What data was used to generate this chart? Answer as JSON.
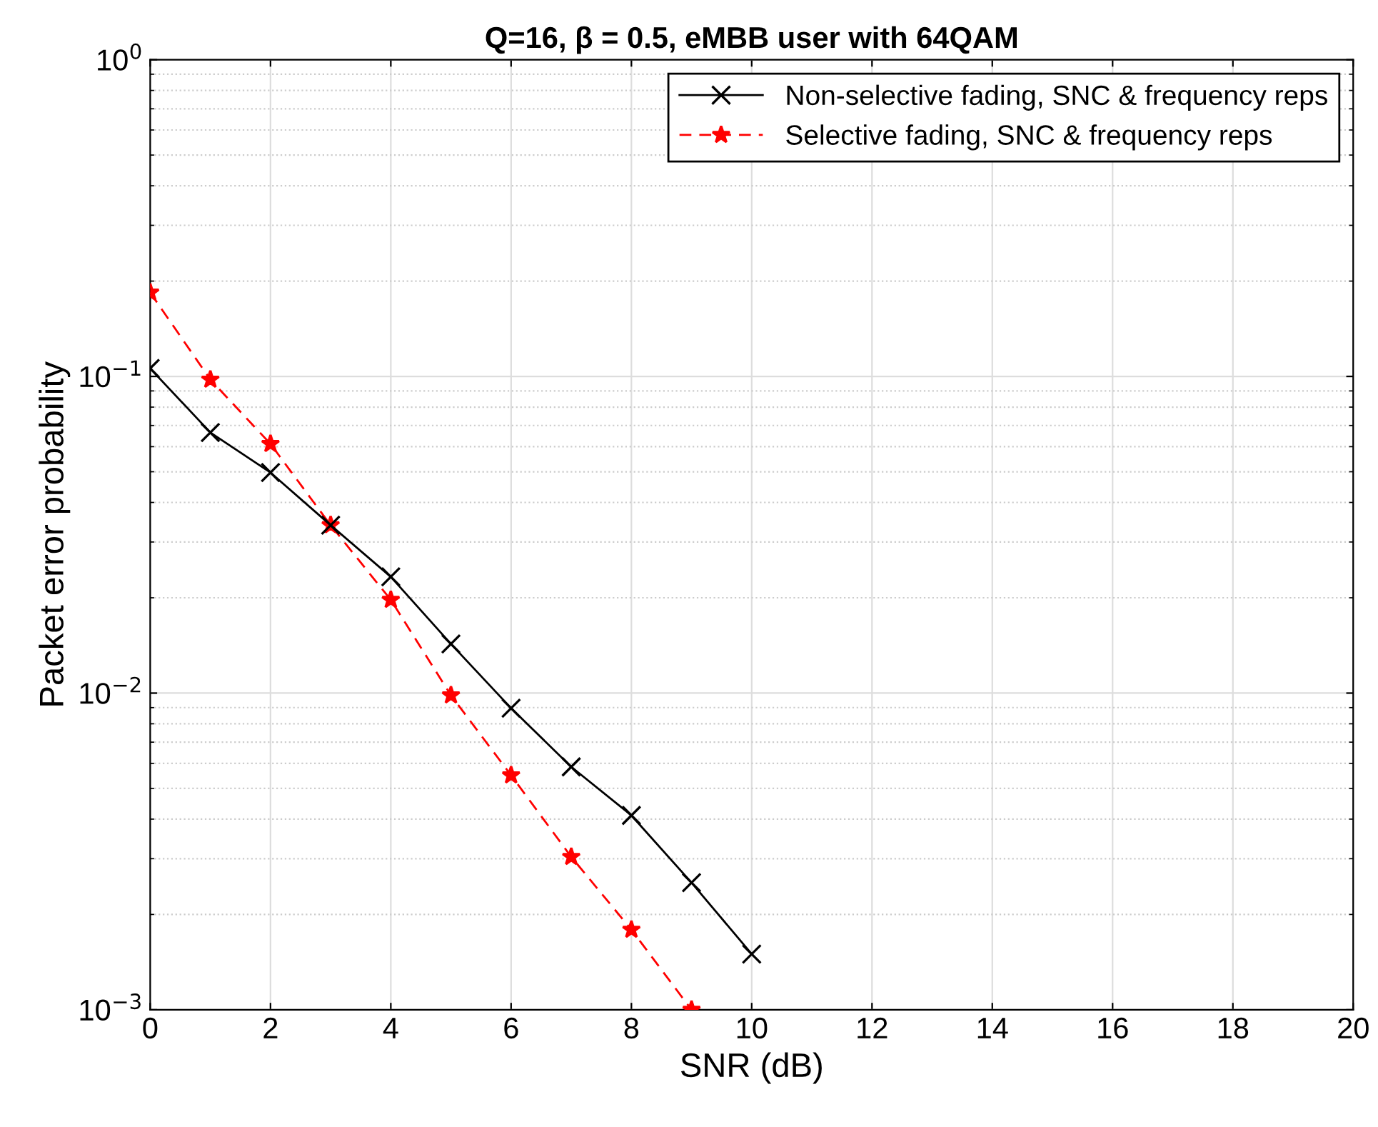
{
  "chart_data": {
    "type": "line",
    "title": "Q=16, β = 0.5, eMBB user with 64QAM",
    "xlabel": "SNR (dB)",
    "ylabel": "Packet error probability",
    "x": [
      0,
      1,
      2,
      3,
      4,
      5,
      6,
      7,
      8,
      9,
      10
    ],
    "series": [
      {
        "name": "Non-selective fading, SNC & frequency reps",
        "color": "#000000",
        "marker": "cross",
        "line_style": "solid",
        "values": [
          0.106,
          0.0665,
          0.0497,
          0.0339,
          0.0233,
          0.0143,
          0.00896,
          0.00585,
          0.00411,
          0.00252,
          0.0015
        ]
      },
      {
        "name": "Selective fading, SNC & frequency reps",
        "color": "#ff0000",
        "marker": "star",
        "line_style": "dashed",
        "values": [
          0.184,
          0.0977,
          0.0612,
          0.0339,
          0.0197,
          0.00984,
          0.0055,
          0.00304,
          0.00179,
          0.001,
          null
        ]
      }
    ],
    "log": "y",
    "xlim": [
      0,
      20
    ],
    "xticks": [
      0,
      2,
      4,
      6,
      8,
      10,
      12,
      14,
      16,
      18,
      20
    ],
    "ylim": [
      0.001,
      1
    ],
    "yticks": [
      {
        "value": 0.001,
        "label": "10$^{−3}$"
      },
      {
        "value": 0.01,
        "label": "10$^{−2}$"
      },
      {
        "value": 0.1,
        "label": "10$^{−1}$"
      },
      {
        "value": 1,
        "label": "10$^{0}$"
      }
    ],
    "grid": true,
    "legend": "top right"
  }
}
